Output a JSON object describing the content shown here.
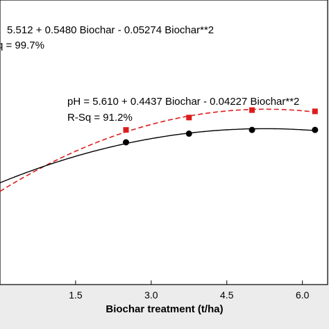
{
  "chart_data": {
    "type": "line",
    "xlabel": "Biochar treatment (t/ha)",
    "ylabel": "",
    "x_ticks": [
      "1.5",
      "3.0",
      "4.5",
      "6.0"
    ],
    "xlim": [
      0.0,
      6.5
    ],
    "ylim": [
      5.3,
      7.6
    ],
    "grid": false,
    "series": [
      {
        "name": "",
        "marker": "square",
        "color": "#dd1c1c",
        "line_style": "dashed",
        "equation": "5.512 + 0.5480 Biochar - 0.05274 Biochar**2",
        "r_sq": "q = 99.7%",
        "x": [
          2.5,
          3.75,
          5.0,
          6.25
        ],
        "y": [
          6.55,
          6.65,
          6.71,
          6.7
        ]
      },
      {
        "name": "",
        "marker": "circle",
        "color": "#000000",
        "line_style": "solid",
        "equation": "pH = 5.610 + 0.4437 Biochar - 0.04227 Biochar**2",
        "r_sq": "R-Sq = 91.2%",
        "x": [
          2.5,
          3.75,
          5.0,
          6.25
        ],
        "y": [
          6.45,
          6.52,
          6.55,
          6.55
        ]
      }
    ]
  }
}
